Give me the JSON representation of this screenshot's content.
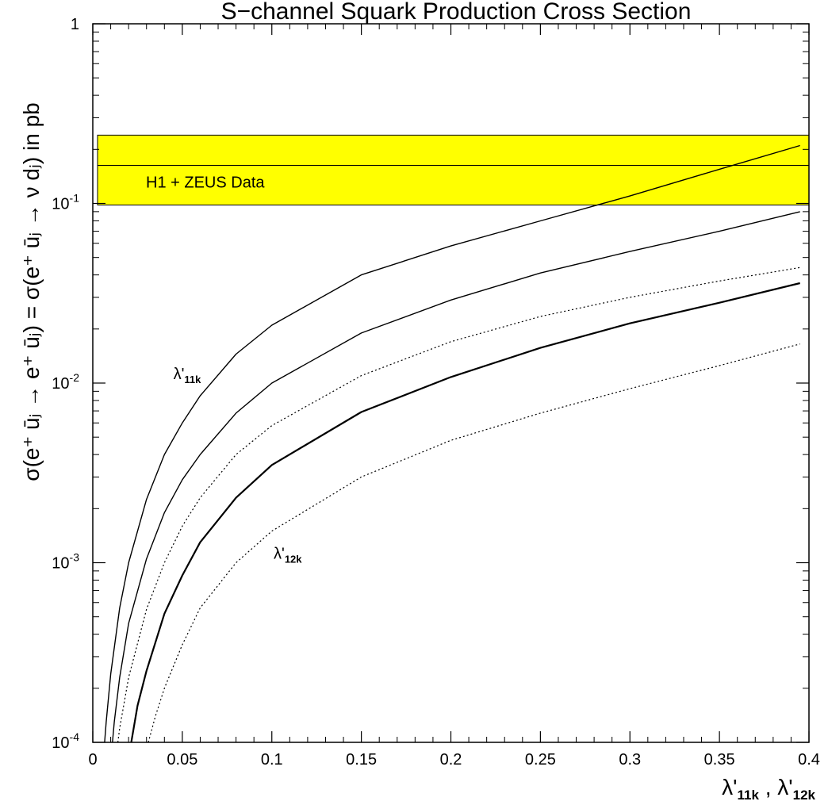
{
  "chart_data": {
    "type": "line",
    "title": "S−channel Squark Production Cross Section",
    "xlabel_parts": [
      "λ'",
      "11k",
      " , λ'",
      "12k"
    ],
    "ylabel": "σ(e⁺ ūⱼ → e⁺ ūⱼ) = σ(e⁺ ūⱼ → ν dⱼ) in pb",
    "xlim": [
      0,
      0.4
    ],
    "ylog": true,
    "ylim": [
      0.0001,
      1
    ],
    "x_ticks": [
      {
        "v": 0,
        "label": "0"
      },
      {
        "v": 0.05,
        "label": "0.05"
      },
      {
        "v": 0.1,
        "label": "0.1"
      },
      {
        "v": 0.15,
        "label": "0.15"
      },
      {
        "v": 0.2,
        "label": "0.2"
      },
      {
        "v": 0.25,
        "label": "0.25"
      },
      {
        "v": 0.3,
        "label": "0.3"
      },
      {
        "v": 0.35,
        "label": "0.35"
      },
      {
        "v": 0.4,
        "label": "0.4"
      }
    ],
    "y_ticks": [
      {
        "v": 1,
        "label": "1",
        "exp": ""
      },
      {
        "v": 0.1,
        "label": "10",
        "exp": "-1"
      },
      {
        "v": 0.01,
        "label": "10",
        "exp": "-2"
      },
      {
        "v": 0.001,
        "label": "10",
        "exp": "-3"
      },
      {
        "v": 0.0001,
        "label": "10",
        "exp": "-4"
      }
    ],
    "band": {
      "label": "H1 + ZEUS Data",
      "low": 0.098,
      "high": 0.24,
      "central": 0.163,
      "color": "#ffff00"
    },
    "annotations": [
      {
        "base": "λ'",
        "sub": "11k",
        "x": 0.045,
        "y": 0.0105
      },
      {
        "base": "λ'",
        "sub": "12k",
        "x": 0.101,
        "y": 0.00105
      }
    ],
    "series": [
      {
        "style": "solid",
        "width": 1.4,
        "x": [
          0.0066,
          0.0075,
          0.01,
          0.015,
          0.02,
          0.03,
          0.04,
          0.05,
          0.06,
          0.08,
          0.1,
          0.15,
          0.2,
          0.25,
          0.3,
          0.35,
          0.395
        ],
        "y": [
          0.0001,
          0.00013,
          0.00024,
          0.00056,
          0.001,
          0.00225,
          0.004,
          0.006,
          0.0085,
          0.0145,
          0.021,
          0.04,
          0.058,
          0.08,
          0.11,
          0.155,
          0.21
        ]
      },
      {
        "style": "solid",
        "width": 1.4,
        "x": [
          0.011,
          0.012,
          0.015,
          0.02,
          0.03,
          0.04,
          0.05,
          0.06,
          0.08,
          0.1,
          0.15,
          0.2,
          0.25,
          0.3,
          0.35,
          0.395
        ],
        "y": [
          0.0001,
          0.00013,
          0.00023,
          0.00046,
          0.00105,
          0.0019,
          0.0029,
          0.004,
          0.0068,
          0.01,
          0.019,
          0.029,
          0.041,
          0.054,
          0.07,
          0.09
        ]
      },
      {
        "style": "dotted",
        "width": 1.2,
        "x": [
          0.014,
          0.015,
          0.02,
          0.03,
          0.04,
          0.05,
          0.06,
          0.08,
          0.1,
          0.15,
          0.2,
          0.25,
          0.3,
          0.35,
          0.395
        ],
        "y": [
          0.0001,
          0.00012,
          0.00023,
          0.00055,
          0.001,
          0.0016,
          0.0023,
          0.004,
          0.0058,
          0.011,
          0.017,
          0.0235,
          0.03,
          0.037,
          0.044
        ]
      },
      {
        "style": "solid",
        "width": 2.2,
        "x": [
          0.0215,
          0.025,
          0.03,
          0.04,
          0.05,
          0.06,
          0.08,
          0.1,
          0.15,
          0.2,
          0.25,
          0.3,
          0.35,
          0.395
        ],
        "y": [
          0.0001,
          0.00016,
          0.00025,
          0.00052,
          0.00085,
          0.0013,
          0.0023,
          0.0035,
          0.0069,
          0.0108,
          0.0157,
          0.0215,
          0.028,
          0.036
        ]
      },
      {
        "style": "dotted",
        "width": 1.2,
        "x": [
          0.031,
          0.035,
          0.04,
          0.05,
          0.06,
          0.08,
          0.1,
          0.15,
          0.2,
          0.25,
          0.3,
          0.35,
          0.395
        ],
        "y": [
          0.0001,
          0.00014,
          0.0002,
          0.00035,
          0.00056,
          0.001,
          0.0015,
          0.003,
          0.0048,
          0.0068,
          0.0093,
          0.0125,
          0.0165
        ]
      }
    ]
  }
}
